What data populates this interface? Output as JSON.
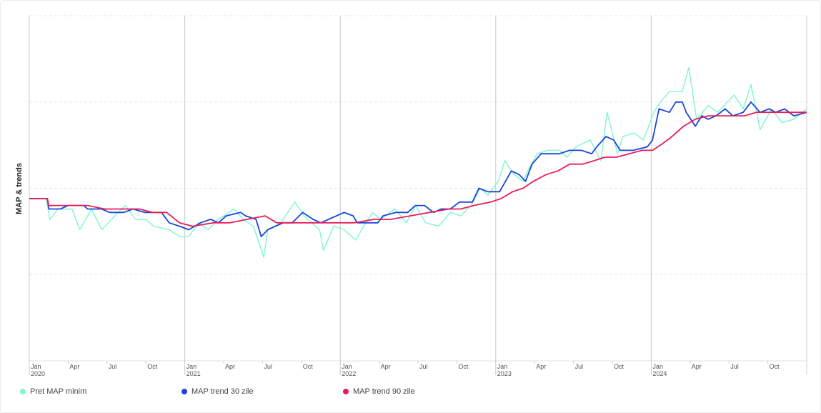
{
  "chart_data": {
    "type": "line",
    "ylabel": "MAP & trends",
    "x_ticks": [
      {
        "label": "Jan",
        "year": "2020",
        "m": 0
      },
      {
        "label": "Apr",
        "m": 3
      },
      {
        "label": "Jul",
        "m": 6
      },
      {
        "label": "Oct",
        "m": 9
      },
      {
        "label": "Jan",
        "year": "2021",
        "m": 12
      },
      {
        "label": "Apr",
        "m": 15
      },
      {
        "label": "Jul",
        "m": 18
      },
      {
        "label": "Oct",
        "m": 21
      },
      {
        "label": "Jan",
        "year": "2022",
        "m": 24
      },
      {
        "label": "Apr",
        "m": 27
      },
      {
        "label": "Jul",
        "m": 30
      },
      {
        "label": "Oct",
        "m": 33
      },
      {
        "label": "Jan",
        "year": "2023",
        "m": 36
      },
      {
        "label": "Apr",
        "m": 39
      },
      {
        "label": "Jul",
        "m": 42
      },
      {
        "label": "Oct",
        "m": 45
      },
      {
        "label": "Jan",
        "year": "2024",
        "m": 48
      },
      {
        "label": "Apr",
        "m": 51
      },
      {
        "label": "Jul",
        "m": 54
      },
      {
        "label": "Oct",
        "m": 57
      }
    ],
    "x_range_months": [
      0,
      60
    ],
    "y_range": [
      0,
      100
    ],
    "grid": true,
    "legend_position": "bottom-left",
    "series": [
      {
        "name": "Pret MAP minim",
        "color": "#7ff5d5",
        "points": [
          [
            0,
            47
          ],
          [
            1.3,
            47
          ],
          [
            1.6,
            41
          ],
          [
            2.2,
            44
          ],
          [
            3.3,
            44
          ],
          [
            3.9,
            38
          ],
          [
            4.8,
            44
          ],
          [
            5.6,
            38
          ],
          [
            6.6,
            42
          ],
          [
            7.4,
            45
          ],
          [
            8.2,
            41
          ],
          [
            9,
            41
          ],
          [
            9.6,
            39
          ],
          [
            10.8,
            38
          ],
          [
            11.6,
            36
          ],
          [
            12.3,
            36
          ],
          [
            13.1,
            40
          ],
          [
            13.8,
            38
          ],
          [
            14.6,
            41
          ],
          [
            15.8,
            44
          ],
          [
            16.5,
            41
          ],
          [
            17.3,
            39
          ],
          [
            18.1,
            30
          ],
          [
            18.4,
            38
          ],
          [
            19.4,
            40
          ],
          [
            20.5,
            46
          ],
          [
            21.2,
            42
          ],
          [
            22.4,
            38
          ],
          [
            22.7,
            32
          ],
          [
            23.5,
            39
          ],
          [
            24.3,
            38
          ],
          [
            25.2,
            35
          ],
          [
            25.8,
            39
          ],
          [
            26.5,
            43
          ],
          [
            27.1,
            41
          ],
          [
            28.2,
            44
          ],
          [
            29.1,
            40
          ],
          [
            29.8,
            45
          ],
          [
            30.6,
            40
          ],
          [
            31.6,
            39
          ],
          [
            32.5,
            43
          ],
          [
            33.3,
            42
          ],
          [
            34.1,
            45
          ],
          [
            34.8,
            50
          ],
          [
            35.4,
            48
          ],
          [
            36.2,
            52
          ],
          [
            36.7,
            58
          ],
          [
            37.4,
            54
          ],
          [
            38.1,
            52
          ],
          [
            38.6,
            56
          ],
          [
            39.2,
            60
          ],
          [
            40,
            61
          ],
          [
            40.9,
            61
          ],
          [
            41.5,
            59
          ],
          [
            42.2,
            62
          ],
          [
            43.3,
            64
          ],
          [
            44.1,
            58
          ],
          [
            44.6,
            72
          ],
          [
            45.4,
            60
          ],
          [
            45.8,
            65
          ],
          [
            46.7,
            66
          ],
          [
            47.4,
            64
          ],
          [
            48.2,
            72
          ],
          [
            48.7,
            75
          ],
          [
            49.4,
            78
          ],
          [
            50.4,
            78
          ],
          [
            50.9,
            85
          ],
          [
            51.5,
            70
          ],
          [
            52.4,
            74
          ],
          [
            53.1,
            72
          ],
          [
            54.4,
            77
          ],
          [
            55.1,
            73
          ],
          [
            55.7,
            80
          ],
          [
            56.4,
            67
          ],
          [
            57.3,
            73
          ],
          [
            58.1,
            69
          ],
          [
            59,
            70
          ],
          [
            60,
            73
          ]
        ]
      },
      {
        "name": "MAP trend 30 zile",
        "color": "#1a46d8",
        "points": [
          [
            0,
            47
          ],
          [
            1.4,
            47
          ],
          [
            1.5,
            44
          ],
          [
            2.4,
            44
          ],
          [
            3,
            45
          ],
          [
            4.2,
            45
          ],
          [
            4.5,
            44
          ],
          [
            5.6,
            44
          ],
          [
            6.2,
            43
          ],
          [
            7.3,
            43
          ],
          [
            8,
            44
          ],
          [
            8.9,
            43
          ],
          [
            10.2,
            43
          ],
          [
            10.8,
            40
          ],
          [
            11.6,
            39
          ],
          [
            12.3,
            38
          ],
          [
            13.2,
            40
          ],
          [
            14,
            41
          ],
          [
            14.6,
            40
          ],
          [
            15.2,
            42
          ],
          [
            16.3,
            43
          ],
          [
            16.7,
            42
          ],
          [
            17.5,
            41
          ],
          [
            17.9,
            36
          ],
          [
            18.4,
            38
          ],
          [
            19.6,
            40
          ],
          [
            20.3,
            40
          ],
          [
            21.1,
            43
          ],
          [
            21.9,
            41
          ],
          [
            22.5,
            40
          ],
          [
            23.1,
            41
          ],
          [
            24.3,
            43
          ],
          [
            25,
            42
          ],
          [
            25.3,
            40
          ],
          [
            26,
            40
          ],
          [
            26.9,
            40
          ],
          [
            27.3,
            42
          ],
          [
            28.3,
            43
          ],
          [
            29.2,
            43
          ],
          [
            29.8,
            45
          ],
          [
            30.5,
            45
          ],
          [
            31.2,
            43
          ],
          [
            31.8,
            44
          ],
          [
            32.5,
            44
          ],
          [
            33.2,
            46
          ],
          [
            34.2,
            46
          ],
          [
            34.7,
            50
          ],
          [
            35.4,
            49
          ],
          [
            36.3,
            49
          ],
          [
            37.2,
            55
          ],
          [
            37.8,
            54
          ],
          [
            38.3,
            52
          ],
          [
            38.8,
            57
          ],
          [
            39.5,
            60
          ],
          [
            40.3,
            60
          ],
          [
            40.9,
            60
          ],
          [
            41.7,
            61
          ],
          [
            42.6,
            61
          ],
          [
            43.4,
            60
          ],
          [
            43.8,
            62
          ],
          [
            44.5,
            65
          ],
          [
            45.1,
            64
          ],
          [
            45.6,
            61
          ],
          [
            46.6,
            61
          ],
          [
            47.7,
            62
          ],
          [
            48.1,
            64
          ],
          [
            48.6,
            73
          ],
          [
            49.4,
            72
          ],
          [
            49.9,
            75
          ],
          [
            50.4,
            75
          ],
          [
            50.7,
            72
          ],
          [
            51.4,
            68
          ],
          [
            51.9,
            71
          ],
          [
            52.4,
            70
          ],
          [
            53,
            71
          ],
          [
            53.7,
            73
          ],
          [
            54.3,
            71
          ],
          [
            55.1,
            72
          ],
          [
            55.7,
            75
          ],
          [
            56.4,
            72
          ],
          [
            57.1,
            73
          ],
          [
            57.6,
            72
          ],
          [
            58.3,
            73
          ],
          [
            59,
            71
          ],
          [
            60,
            72
          ]
        ]
      },
      {
        "name": "MAP trend 90 zile",
        "color": "#e81c57",
        "points": [
          [
            0,
            47
          ],
          [
            1.4,
            47
          ],
          [
            1.5,
            45
          ],
          [
            2.6,
            45
          ],
          [
            3.2,
            45
          ],
          [
            4.5,
            45
          ],
          [
            5.8,
            44
          ],
          [
            7.4,
            44
          ],
          [
            8.5,
            44
          ],
          [
            9.5,
            43
          ],
          [
            10.6,
            43
          ],
          [
            11.6,
            40
          ],
          [
            12.6,
            39
          ],
          [
            14.2,
            40
          ],
          [
            15.5,
            40
          ],
          [
            16.8,
            41
          ],
          [
            18.2,
            42
          ],
          [
            19.1,
            40
          ],
          [
            20.4,
            40
          ],
          [
            21.4,
            40
          ],
          [
            22.6,
            40
          ],
          [
            23.8,
            40
          ],
          [
            25.1,
            40
          ],
          [
            26.6,
            41
          ],
          [
            27.9,
            41
          ],
          [
            29.4,
            42
          ],
          [
            30.9,
            43
          ],
          [
            32.4,
            44
          ],
          [
            33.3,
            44
          ],
          [
            34.3,
            45
          ],
          [
            35.6,
            46
          ],
          [
            36.4,
            47
          ],
          [
            37.3,
            49
          ],
          [
            38.1,
            50
          ],
          [
            38.9,
            52
          ],
          [
            39.9,
            54
          ],
          [
            40.8,
            55
          ],
          [
            41.7,
            57
          ],
          [
            42.7,
            57
          ],
          [
            43.6,
            58
          ],
          [
            44.4,
            59
          ],
          [
            45.3,
            59
          ],
          [
            46.3,
            60
          ],
          [
            47.3,
            61
          ],
          [
            48.1,
            61
          ],
          [
            48.9,
            63
          ],
          [
            49.6,
            65
          ],
          [
            50.5,
            68
          ],
          [
            51.4,
            70
          ],
          [
            52.4,
            71
          ],
          [
            53.3,
            71
          ],
          [
            54.3,
            71
          ],
          [
            55.2,
            71
          ],
          [
            56.1,
            72
          ],
          [
            57.1,
            72
          ],
          [
            58.1,
            72
          ],
          [
            59,
            72
          ],
          [
            60,
            72
          ]
        ]
      }
    ]
  }
}
